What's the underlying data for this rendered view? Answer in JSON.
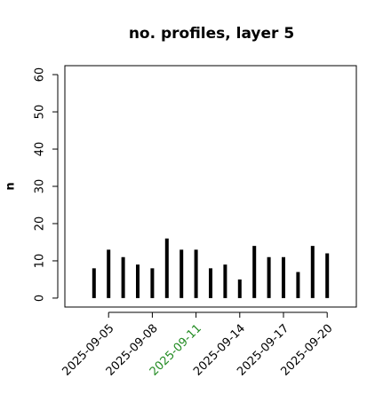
{
  "chart_data": {
    "type": "bar",
    "title": "no. profiles, layer 5",
    "y_label": "n",
    "x": [
      "2025-09-04",
      "2025-09-05",
      "2025-09-06",
      "2025-09-07",
      "2025-09-08",
      "2025-09-09",
      "2025-09-10",
      "2025-09-11",
      "2025-09-12",
      "2025-09-13",
      "2025-09-14",
      "2025-09-15",
      "2025-09-16",
      "2025-09-17",
      "2025-09-18",
      "2025-09-19",
      "2025-09-20"
    ],
    "values": [
      8,
      13,
      11,
      9,
      8,
      16,
      13,
      13,
      8,
      9,
      5,
      14,
      11,
      11,
      7,
      14,
      12
    ],
    "color": "#000000",
    "xlim": [
      "2025-09-02",
      "2025-09-22"
    ],
    "xticks": [
      {
        "value": "2025-09-05",
        "color": "#000000"
      },
      {
        "value": "2025-09-08",
        "color": "#000000"
      },
      {
        "value": "2025-09-11",
        "color": "#228b22"
      },
      {
        "value": "2025-09-14",
        "color": "#000000"
      },
      {
        "value": "2025-09-17",
        "color": "#000000"
      },
      {
        "value": "2025-09-20",
        "color": "#000000"
      }
    ],
    "ylim": [
      -2.4,
      62.4
    ],
    "yticks": [
      0,
      10,
      20,
      30,
      40,
      50,
      60
    ],
    "grid": false
  }
}
